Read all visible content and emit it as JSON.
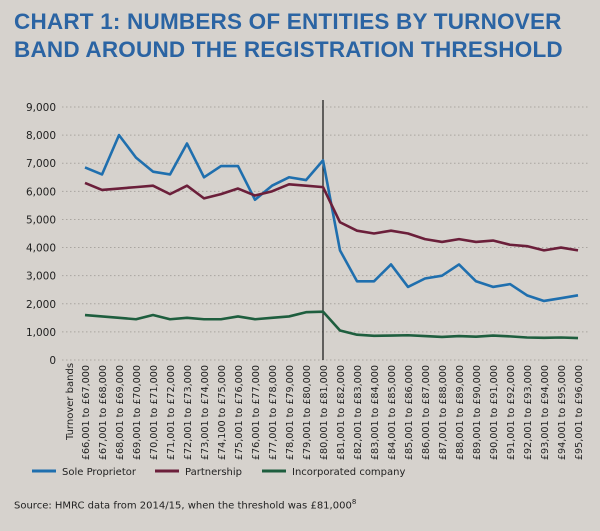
{
  "title": "CHART 1: NUMBERS OF ENTITIES BY TURNOVER BAND AROUND THE REGISTRATION THRESHOLD",
  "source": "Source: HMRC data from 2014/15, when the threshold was £81,000",
  "source_sup": "8",
  "chart_data": {
    "type": "line",
    "title": "CHART 1: NUMBERS OF ENTITIES BY TURNOVER BAND AROUND THE REGISTRATION THRESHOLD",
    "xlabel": "Turnover bands",
    "ylabel": "",
    "ylim": [
      0,
      9000
    ],
    "yticks": [
      "0",
      "1,000",
      "2,000",
      "3,000",
      "4,000",
      "5,000",
      "6,000",
      "7,000",
      "8,000",
      "9,000"
    ],
    "grid": "horizontal dotted",
    "legend": "bottom",
    "threshold_category": "£80,001 to £81,000",
    "categories": [
      "£66,001 to £67,000",
      "£67,001 to £68,000",
      "£68,001 to £69,000",
      "£69,001 to £70,000",
      "£70,001 to £71,000",
      "£71,001 to £72,000",
      "£72,001 to £73,000",
      "£73,001 to £74,000",
      "£74,100 to £75,000",
      "£75,001 to £76,000",
      "£76,001 to £77,000",
      "£77,001 to £78,000",
      "£78,001 to £79,000",
      "£79,001 to £80,000",
      "£80,001 to £81,000",
      "£81,001 to £82,000",
      "£82,001 to £83,000",
      "£83,001 to £84,000",
      "£84,001 to £85,000",
      "£85,001 to £86,000",
      "£86,001 to £87,000",
      "£87,001 to £88,000",
      "£88,001 to £89,000",
      "£89,001 to £90,000",
      "£90,001 to £91,000",
      "£91,001 to £92,000",
      "£92,001 to £93,000",
      "£93,001 to £94,000",
      "£94,001 to £95,000",
      "£95,001 to £96,000"
    ],
    "series": [
      {
        "name": "Sole Proprietor",
        "color": "#1f6fae",
        "values": [
          6850,
          6600,
          8000,
          7200,
          6700,
          6600,
          7700,
          6500,
          6900,
          6900,
          5700,
          6200,
          6500,
          6400,
          7100,
          3900,
          2800,
          2800,
          3400,
          2600,
          2900,
          3000,
          3400,
          2800,
          2600,
          2700,
          2300,
          2100,
          2200,
          2300
        ]
      },
      {
        "name": "Partnership",
        "color": "#6b1f3a",
        "values": [
          6300,
          6050,
          6100,
          6150,
          6200,
          5900,
          6200,
          5750,
          5900,
          6100,
          5850,
          6000,
          6250,
          6200,
          6150,
          4900,
          4600,
          4500,
          4600,
          4500,
          4300,
          4200,
          4300,
          4200,
          4250,
          4100,
          4050,
          3900,
          4000,
          3900
        ]
      },
      {
        "name": "Incorporated company",
        "color": "#1e5e3e",
        "values": [
          1600,
          1550,
          1500,
          1450,
          1600,
          1450,
          1500,
          1450,
          1450,
          1550,
          1450,
          1500,
          1550,
          1700,
          1720,
          1050,
          900,
          860,
          870,
          880,
          850,
          820,
          850,
          830,
          870,
          840,
          800,
          790,
          800,
          780
        ]
      }
    ]
  }
}
